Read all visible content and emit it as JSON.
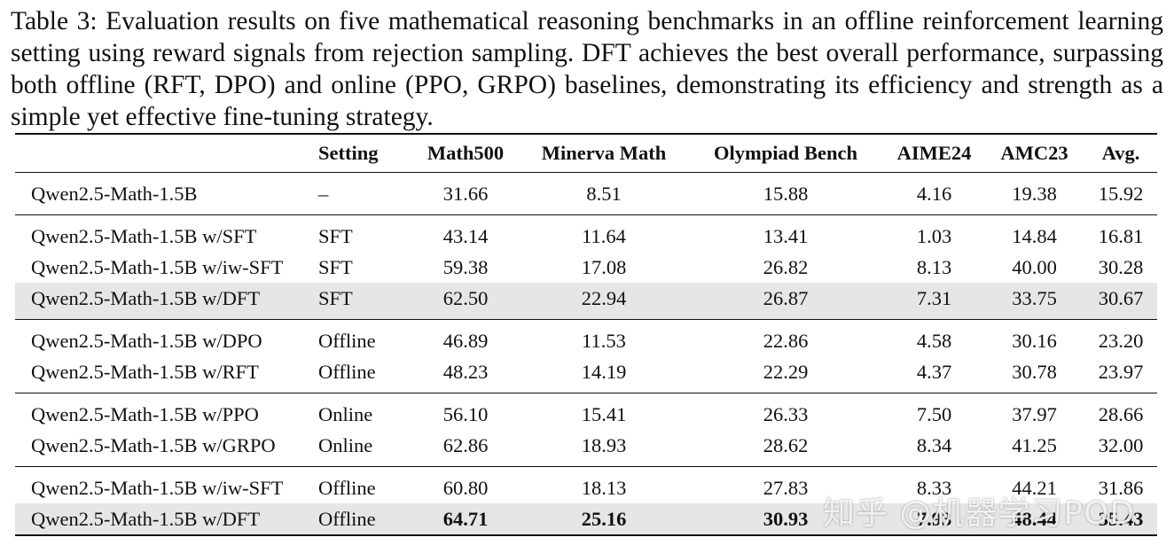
{
  "caption": "Table 3: Evaluation results on five mathematical reasoning benchmarks in an offline reinforcement learning setting using reward signals from rejection sampling. DFT achieves the best overall performance, surpassing both offline (RFT, DPO) and online (PPO, GRPO) baselines, demonstrating its efficiency and strength as a simple yet effective fine-tuning strategy.",
  "table": {
    "headers": [
      "",
      "Setting",
      "Math500",
      "Minerva Math",
      "Olympiad Bench",
      "AIME24",
      "AMC23",
      "Avg."
    ],
    "rows": [
      [
        "Qwen2.5-Math-1.5B",
        "–",
        "31.66",
        "8.51",
        "15.88",
        "4.16",
        "19.38",
        "15.92"
      ],
      [
        "Qwen2.5-Math-1.5B w/SFT",
        "SFT",
        "43.14",
        "11.64",
        "13.41",
        "1.03",
        "14.84",
        "16.81"
      ],
      [
        "Qwen2.5-Math-1.5B w/iw-SFT",
        "SFT",
        "59.38",
        "17.08",
        "26.82",
        "8.13",
        "40.00",
        "30.28"
      ],
      [
        "Qwen2.5-Math-1.5B w/DFT",
        "SFT",
        "62.50",
        "22.94",
        "26.87",
        "7.31",
        "33.75",
        "30.67"
      ],
      [
        "Qwen2.5-Math-1.5B w/DPO",
        "Offline",
        "46.89",
        "11.53",
        "22.86",
        "4.58",
        "30.16",
        "23.20"
      ],
      [
        "Qwen2.5-Math-1.5B w/RFT",
        "Offline",
        "48.23",
        "14.19",
        "22.29",
        "4.37",
        "30.78",
        "23.97"
      ],
      [
        "Qwen2.5-Math-1.5B w/PPO",
        "Online",
        "56.10",
        "15.41",
        "26.33",
        "7.50",
        "37.97",
        "28.66"
      ],
      [
        "Qwen2.5-Math-1.5B w/GRPO",
        "Online",
        "62.86",
        "18.93",
        "28.62",
        "8.34",
        "41.25",
        "32.00"
      ],
      [
        "Qwen2.5-Math-1.5B w/iw-SFT",
        "Offline",
        "60.80",
        "18.13",
        "27.83",
        "8.33",
        "44.21",
        "31.86"
      ],
      [
        "Qwen2.5-Math-1.5B w/DFT",
        "Offline",
        "64.71",
        "25.16",
        "30.93",
        "7.93",
        "48.44",
        "35.43"
      ]
    ]
  },
  "watermark": "知乎 @机器学习POD"
}
